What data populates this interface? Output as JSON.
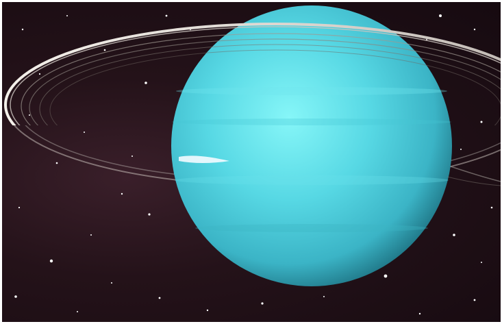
{
  "scene": {
    "subject": "planet-with-rings",
    "colors": {
      "space": "#1c0e15",
      "planet_light": "#7ef0f4",
      "planet_mid": "#4fd0dc",
      "planet_dark": "#1f8896",
      "ring": "#e8e2dc",
      "star": "#ffffff",
      "frame": "#ffffff"
    }
  }
}
